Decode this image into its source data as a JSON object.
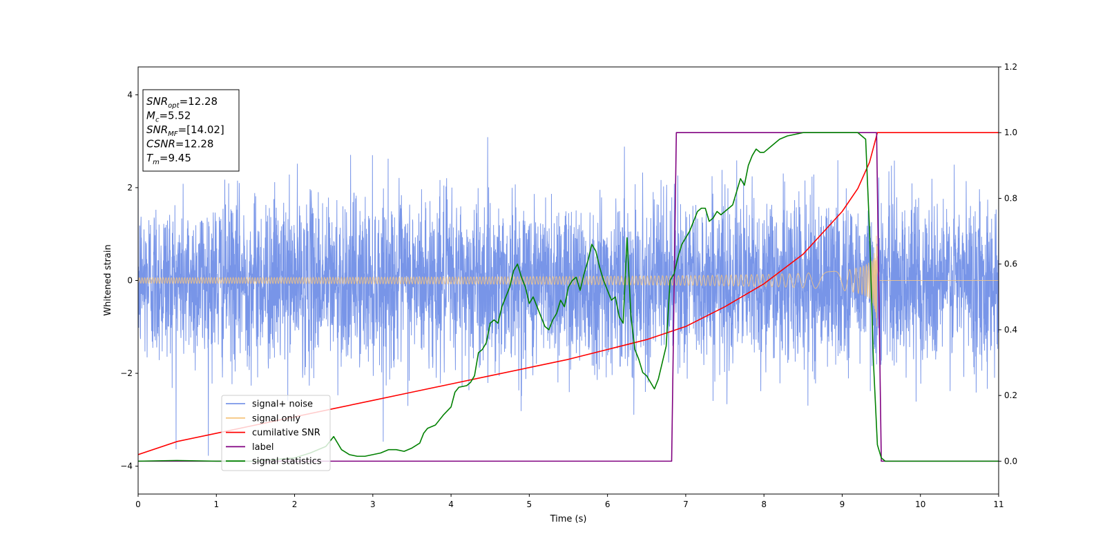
{
  "chart_data": {
    "type": "line",
    "xlabel": "Time (s)",
    "ylabel": "Whitened strain",
    "xlim": [
      0,
      11
    ],
    "ylim_left": [
      -4.6,
      4.6
    ],
    "ylim_right": [
      -0.1,
      1.2
    ],
    "x_ticks": [
      "0",
      "1",
      "2",
      "3",
      "4",
      "5",
      "6",
      "7",
      "8",
      "9",
      "10",
      "11"
    ],
    "y_ticks_left": [
      "−4",
      "−2",
      "0",
      "2",
      "4"
    ],
    "y_ticks_right": [
      "0.0",
      "0.2",
      "0.4",
      "0.6",
      "0.8",
      "1.0",
      "1.2"
    ],
    "grid": false,
    "legend_position": "lower-left",
    "stats_box": [
      {
        "var": "SNR",
        "sub": "opt",
        "value": "=12.28"
      },
      {
        "var": "M",
        "sub": "c",
        "value": "=5.52"
      },
      {
        "var": "SNR",
        "sub": "MF",
        "value": "=[14.02]"
      },
      {
        "var": "CSNR",
        "sub": "",
        "value": "=12.28"
      },
      {
        "var": "T",
        "sub": "m",
        "value": "=9.45"
      }
    ],
    "series": [
      {
        "name": "signal+ noise",
        "color": "#7895e8",
        "axis": "left",
        "note": "noise around zero, std ~0.9, peaks to ~4.1",
        "x_range": [
          0,
          11
        ],
        "noise_std": 0.9
      },
      {
        "name": "signal only",
        "color": "#f6c680",
        "axis": "left",
        "chirp_end": 9.45,
        "amplitude_start": 0.06,
        "amplitude_end": 1.0
      },
      {
        "name": "cumilative SNR",
        "color": "#ff0000",
        "axis": "right",
        "x": [
          0,
          0.5,
          1,
          1.5,
          2,
          2.5,
          3,
          3.5,
          4,
          4.5,
          5,
          5.5,
          6,
          6.5,
          7,
          7.5,
          8,
          8.5,
          9,
          9.2,
          9.35,
          9.45,
          9.5,
          10,
          11
        ],
        "y": [
          0.02,
          0.06,
          0.085,
          0.11,
          0.135,
          0.16,
          0.185,
          0.21,
          0.235,
          0.26,
          0.285,
          0.31,
          0.34,
          0.37,
          0.41,
          0.47,
          0.54,
          0.63,
          0.76,
          0.83,
          0.91,
          1.0,
          1.0,
          1.0,
          1.0
        ]
      },
      {
        "name": "label",
        "color": "#800080",
        "axis": "right",
        "x": [
          0,
          6.82,
          6.88,
          9.44,
          9.5,
          11
        ],
        "y": [
          0,
          0,
          1,
          1,
          0,
          0
        ]
      },
      {
        "name": "signal statistics",
        "color": "#008000",
        "axis": "right",
        "x": [
          0,
          0.5,
          1,
          1.5,
          2,
          2.2,
          2.4,
          2.5,
          2.6,
          2.7,
          2.8,
          2.9,
          3.0,
          3.1,
          3.2,
          3.3,
          3.4,
          3.5,
          3.6,
          3.65,
          3.7,
          3.8,
          3.9,
          4.0,
          4.05,
          4.1,
          4.2,
          4.25,
          4.3,
          4.35,
          4.4,
          4.45,
          4.5,
          4.55,
          4.6,
          4.65,
          4.7,
          4.75,
          4.8,
          4.85,
          4.9,
          4.95,
          5.0,
          5.05,
          5.1,
          5.15,
          5.2,
          5.25,
          5.3,
          5.35,
          5.4,
          5.45,
          5.5,
          5.55,
          5.6,
          5.65,
          5.7,
          5.75,
          5.8,
          5.85,
          5.9,
          5.95,
          6.0,
          6.05,
          6.1,
          6.15,
          6.2,
          6.25,
          6.3,
          6.35,
          6.4,
          6.45,
          6.5,
          6.55,
          6.6,
          6.65,
          6.7,
          6.75,
          6.8,
          6.85,
          6.9,
          6.95,
          7.0,
          7.05,
          7.1,
          7.15,
          7.2,
          7.25,
          7.3,
          7.35,
          7.4,
          7.45,
          7.5,
          7.55,
          7.6,
          7.65,
          7.7,
          7.75,
          7.8,
          7.85,
          7.9,
          7.95,
          8.0,
          8.1,
          8.2,
          8.3,
          8.5,
          8.7,
          8.9,
          9.1,
          9.2,
          9.25,
          9.3,
          9.35,
          9.4,
          9.45,
          9.5,
          9.55,
          10,
          11
        ],
        "y": [
          0,
          0.002,
          0.0,
          0.0,
          0.01,
          0.025,
          0.045,
          0.075,
          0.035,
          0.02,
          0.015,
          0.015,
          0.02,
          0.025,
          0.035,
          0.035,
          0.03,
          0.04,
          0.055,
          0.085,
          0.1,
          0.11,
          0.14,
          0.165,
          0.21,
          0.225,
          0.23,
          0.24,
          0.26,
          0.33,
          0.34,
          0.36,
          0.42,
          0.43,
          0.42,
          0.47,
          0.5,
          0.53,
          0.58,
          0.6,
          0.56,
          0.53,
          0.48,
          0.5,
          0.47,
          0.44,
          0.41,
          0.4,
          0.43,
          0.45,
          0.49,
          0.47,
          0.53,
          0.55,
          0.56,
          0.52,
          0.57,
          0.61,
          0.66,
          0.64,
          0.59,
          0.55,
          0.52,
          0.49,
          0.5,
          0.44,
          0.42,
          0.68,
          0.44,
          0.34,
          0.31,
          0.27,
          0.26,
          0.24,
          0.22,
          0.25,
          0.3,
          0.35,
          0.55,
          0.57,
          0.62,
          0.66,
          0.68,
          0.7,
          0.73,
          0.76,
          0.77,
          0.77,
          0.73,
          0.74,
          0.76,
          0.75,
          0.76,
          0.77,
          0.78,
          0.82,
          0.86,
          0.84,
          0.9,
          0.93,
          0.95,
          0.94,
          0.94,
          0.96,
          0.98,
          0.99,
          1.0,
          1.0,
          1.0,
          1.0,
          1.0,
          0.99,
          0.98,
          0.7,
          0.3,
          0.05,
          0.01,
          0.0,
          0.0,
          0.0
        ]
      }
    ]
  }
}
